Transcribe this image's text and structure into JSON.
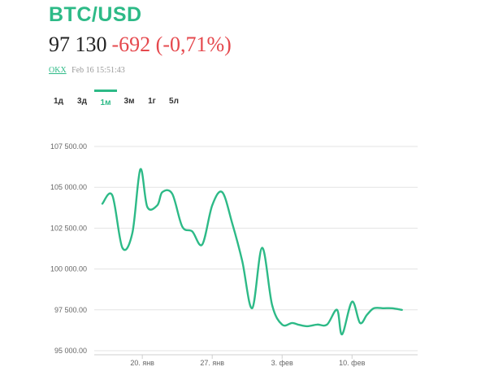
{
  "header": {
    "title": "BTC/USD",
    "price": "97 130",
    "change": "-692 (-0,71%)",
    "source": "OKX",
    "timestamp": "Feb 16 15:51:43"
  },
  "tabs": [
    {
      "label": "1д",
      "active": false
    },
    {
      "label": "3д",
      "active": false
    },
    {
      "label": "1м",
      "active": true
    },
    {
      "label": "3м",
      "active": false
    },
    {
      "label": "1г",
      "active": false
    },
    {
      "label": "5л",
      "active": false
    }
  ],
  "colors": {
    "accent": "#2dba87",
    "negative": "#e5484d"
  },
  "chart_data": {
    "type": "line",
    "y_tick_labels": [
      "95 000.00",
      "97 500.00",
      "100 000.00",
      "102 500.00",
      "105 000.00",
      "107 500.00"
    ],
    "y_ticks": [
      95000,
      97500,
      100000,
      102500,
      105000,
      107500
    ],
    "ylim": [
      95000,
      107500
    ],
    "x_tick_labels": [
      "20. янв",
      "27. янв",
      "3. фев",
      "10. фев"
    ],
    "x_ticks": [
      4,
      11,
      18,
      25
    ],
    "xlim": [
      0,
      31
    ],
    "grid": true,
    "series": [
      {
        "x": [
          0,
          1,
          2,
          3,
          3.8,
          4.5,
          5.5,
          6,
          7,
          8,
          9,
          10,
          11,
          12,
          13,
          14,
          15,
          16,
          17,
          18,
          19,
          19.6,
          20.5,
          21.5,
          22.5,
          23.5,
          24,
          25,
          25.8,
          26.5,
          27.2,
          28.2,
          29,
          30
        ],
        "y": [
          104000,
          104500,
          101300,
          102200,
          106100,
          103800,
          103900,
          104700,
          104600,
          102600,
          102300,
          101500,
          103900,
          104700,
          102800,
          100500,
          97600,
          101300,
          97800,
          96600,
          96700,
          96600,
          96500,
          96600,
          96600,
          97500,
          96000,
          98000,
          96700,
          97200,
          97600,
          97600,
          97600,
          97500
        ]
      }
    ]
  }
}
